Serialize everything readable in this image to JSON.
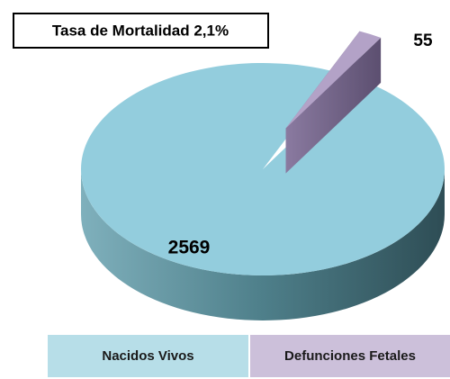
{
  "chart_data": {
    "type": "pie",
    "title": "Tasa de Mortalidad  2,1%",
    "categories": [
      "Nacidos Vivos",
      "Defunciones Fetales"
    ],
    "values": [
      2569,
      55
    ],
    "colors": [
      "#93cddd",
      "#b3a2c7"
    ],
    "legend": "bottom"
  }
}
